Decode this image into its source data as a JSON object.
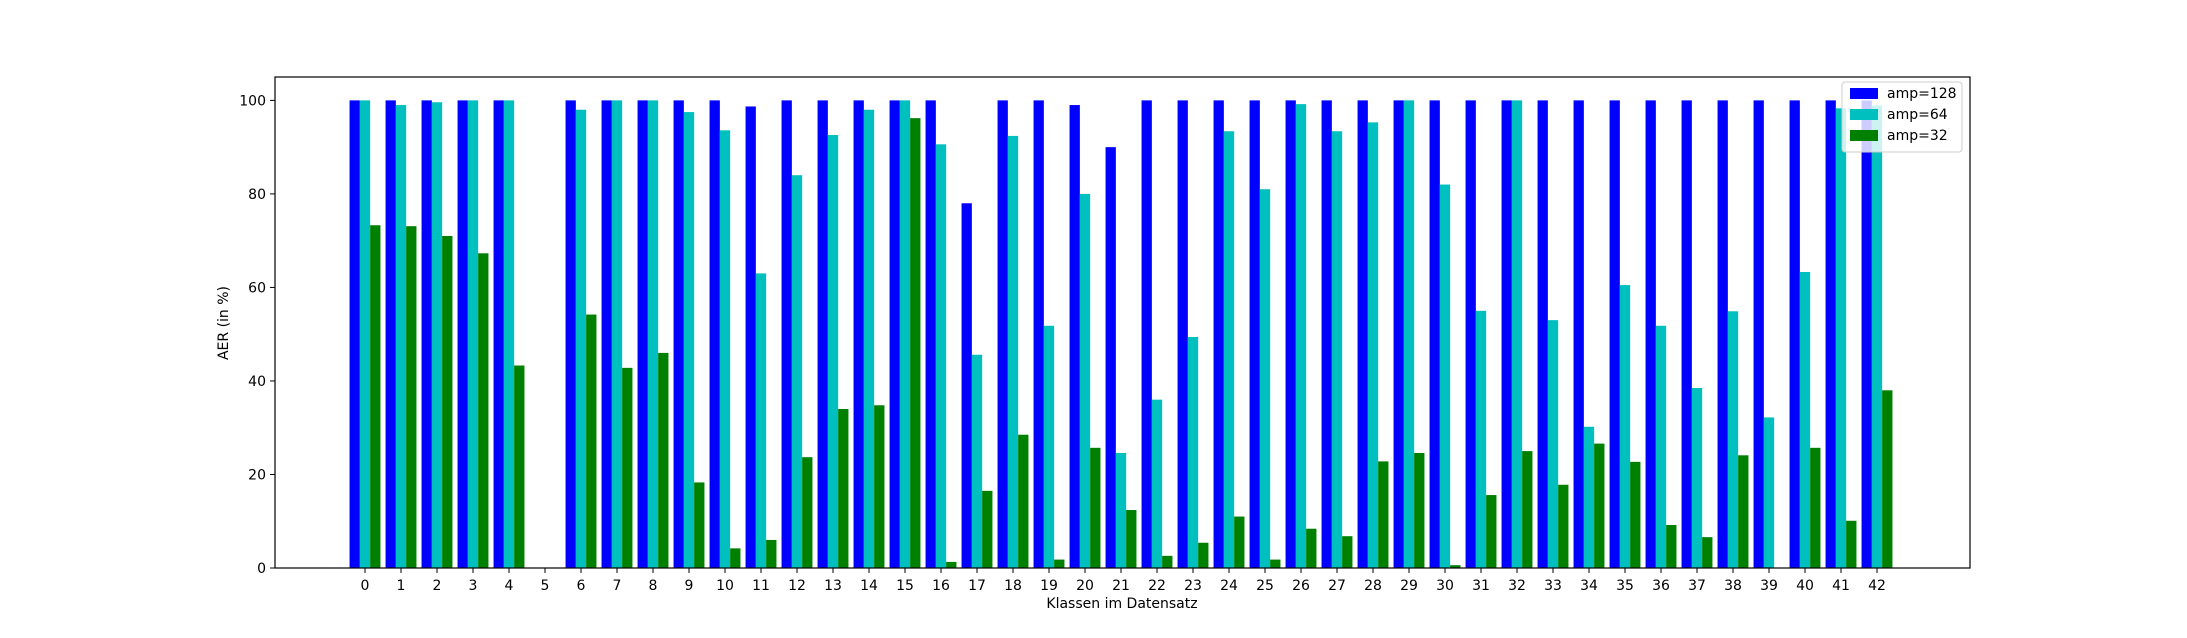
{
  "chart_data": {
    "type": "bar",
    "title": "",
    "xlabel": "Klassen im Datensatz",
    "ylabel": "AER (in %)",
    "ylim": [
      0,
      105
    ],
    "yticks": [
      0,
      20,
      40,
      60,
      80,
      100
    ],
    "grid": false,
    "legend_position": "top-right",
    "categories": [
      "0",
      "1",
      "2",
      "3",
      "4",
      "5",
      "6",
      "7",
      "8",
      "9",
      "10",
      "11",
      "12",
      "13",
      "14",
      "15",
      "16",
      "17",
      "18",
      "19",
      "20",
      "21",
      "22",
      "23",
      "24",
      "25",
      "26",
      "27",
      "28",
      "29",
      "30",
      "31",
      "32",
      "33",
      "34",
      "35",
      "36",
      "37",
      "38",
      "39",
      "40",
      "41",
      "42"
    ],
    "series": [
      {
        "name": "amp=128",
        "color": "#0000ff",
        "values": [
          100,
          100,
          100,
          100,
          100,
          0,
          100,
          100,
          100,
          100,
          100,
          98.7,
          100,
          100,
          100,
          100,
          100,
          78,
          100,
          100,
          99,
          90,
          100,
          100,
          100,
          100,
          100,
          100,
          100,
          100,
          100,
          100,
          100,
          100,
          100,
          100,
          100,
          100,
          100,
          100,
          100,
          100,
          100
        ]
      },
      {
        "name": "amp=64",
        "color": "#00bfbf",
        "values": [
          100,
          99,
          99.6,
          100,
          100,
          0,
          98,
          100,
          100,
          97.5,
          93.6,
          63,
          84,
          92.6,
          98,
          100,
          90.6,
          45.6,
          92.4,
          51.8,
          80,
          24.6,
          36,
          49.4,
          93.4,
          81,
          99.2,
          93.4,
          95.3,
          100,
          82,
          55,
          100,
          53,
          30.2,
          60.5,
          51.8,
          38.5,
          54.9,
          32.2,
          63.3,
          98.3,
          98.9
        ]
      },
      {
        "name": "amp=32",
        "color": "#008000",
        "values": [
          73.3,
          73.1,
          71,
          67.3,
          43.3,
          0,
          54.2,
          42.8,
          46,
          18.3,
          4.2,
          6,
          23.7,
          34,
          34.8,
          96.2,
          1.3,
          16.5,
          28.5,
          1.8,
          25.7,
          12.4,
          2.6,
          5.4,
          11,
          1.8,
          8.4,
          6.8,
          22.8,
          24.6,
          0.6,
          15.6,
          25,
          17.8,
          26.6,
          22.7,
          9.2,
          6.6,
          24.1,
          0,
          25.7,
          10.1,
          38
        ]
      }
    ]
  }
}
